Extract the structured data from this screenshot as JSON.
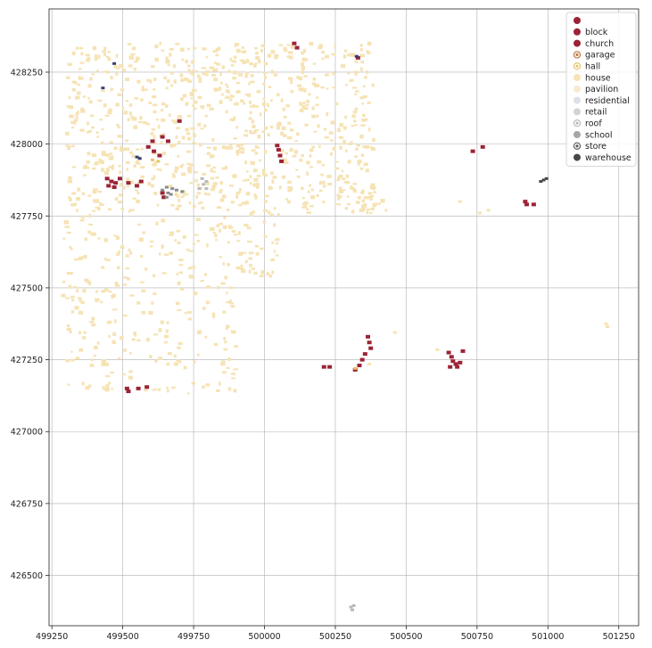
{
  "chart_data": {
    "type": "scatter",
    "title": "",
    "xlabel": "",
    "ylabel": "",
    "xlim": [
      499240,
      501320
    ],
    "ylim": [
      426325,
      428470
    ],
    "grid": true,
    "legend_placement": "top-right",
    "x_ticks": [
      499250,
      499500,
      499750,
      500000,
      500250,
      500500,
      500750,
      501000,
      501250
    ],
    "x_tick_labels": [
      "499250",
      "499500",
      "499750",
      "500000",
      "500250",
      "500500",
      "500750",
      "501000",
      "501250"
    ],
    "y_ticks": [
      426500,
      426750,
      427000,
      427250,
      427500,
      427750,
      428000,
      428250
    ],
    "y_tick_labels": [
      "426500",
      "426750",
      "427000",
      "427250",
      "427500",
      "427750",
      "428000",
      "428250"
    ],
    "legend": [
      {
        "label": "",
        "color": "#9b2335",
        "marker": "filled"
      },
      {
        "label": "block",
        "color": "#9b2335",
        "marker": "filled"
      },
      {
        "label": "church",
        "color": "#9b2335",
        "marker": "filled"
      },
      {
        "label": "garage",
        "color": "#c07840",
        "marker": "hatched"
      },
      {
        "label": "hall",
        "color": "#e7c46a",
        "marker": "hatched"
      },
      {
        "label": "house",
        "color": "#f6e3b4",
        "marker": "filled"
      },
      {
        "label": "pavilion",
        "color": "#f8ead0",
        "marker": "filled"
      },
      {
        "label": "residential",
        "color": "#dde0ea",
        "marker": "filled"
      },
      {
        "label": "retail",
        "color": "#d3d3d3",
        "marker": "filled"
      },
      {
        "label": "roof",
        "color": "#b9b9b9",
        "marker": "hatched"
      },
      {
        "label": "school",
        "color": "#a6a6a6",
        "marker": "filled"
      },
      {
        "label": "store",
        "color": "#5c5c5c",
        "marker": "hatched"
      },
      {
        "label": "warehouse",
        "color": "#474747",
        "marker": "filled"
      }
    ],
    "series": [
      {
        "name": "house",
        "color": "#f6e3b4",
        "regions": [
          {
            "x": [
              499300,
              500390
            ],
            "y": [
              427760,
              428350
            ],
            "n": 820
          },
          {
            "x": [
              499290,
              499900
            ],
            "y": [
              427130,
              427760
            ],
            "n": 260
          },
          {
            "x": [
              499900,
              500050
            ],
            "y": [
              427540,
              427760
            ],
            "n": 40
          },
          {
            "x": [
              500250,
              500430
            ],
            "y": [
              427760,
              427850
            ],
            "n": 25
          }
        ],
        "points": [
          [
            500760,
            427760
          ],
          [
            500790,
            427770
          ],
          [
            500690,
            427800
          ],
          [
            500460,
            427345
          ],
          [
            500610,
            427285
          ],
          [
            501210,
            427365
          ],
          [
            501205,
            427375
          ],
          [
            500370,
            427235
          ]
        ]
      },
      {
        "name": "block",
        "color": "#9b2335",
        "points": [
          [
            499445,
            427880
          ],
          [
            499460,
            427870
          ],
          [
            499475,
            427865
          ],
          [
            499450,
            427855
          ],
          [
            499470,
            427850
          ],
          [
            499490,
            427880
          ],
          [
            499520,
            427865
          ],
          [
            499550,
            427855
          ],
          [
            499565,
            427870
          ],
          [
            499640,
            427830
          ],
          [
            499645,
            427815
          ],
          [
            499590,
            427990
          ],
          [
            499605,
            428010
          ],
          [
            499640,
            428025
          ],
          [
            499660,
            428010
          ],
          [
            499700,
            428080
          ],
          [
            499630,
            427960
          ],
          [
            499610,
            427975
          ],
          [
            500050,
            427980
          ],
          [
            500055,
            427960
          ],
          [
            500060,
            427940
          ],
          [
            500045,
            427995
          ],
          [
            500105,
            428350
          ],
          [
            500115,
            428335
          ],
          [
            500330,
            428300
          ],
          [
            500365,
            427330
          ],
          [
            500370,
            427310
          ],
          [
            500375,
            427290
          ],
          [
            500355,
            427270
          ],
          [
            500345,
            427250
          ],
          [
            500335,
            427230
          ],
          [
            500320,
            427215
          ],
          [
            500230,
            427225
          ],
          [
            500210,
            427225
          ],
          [
            500650,
            427275
          ],
          [
            500660,
            427260
          ],
          [
            500665,
            427245
          ],
          [
            500675,
            427235
          ],
          [
            500680,
            427225
          ],
          [
            500655,
            427225
          ],
          [
            500690,
            427240
          ],
          [
            500700,
            427280
          ],
          [
            500735,
            427975
          ],
          [
            500770,
            427990
          ],
          [
            500920,
            427800
          ],
          [
            500925,
            427790
          ],
          [
            500950,
            427790
          ],
          [
            499515,
            427150
          ],
          [
            499520,
            427140
          ],
          [
            499555,
            427150
          ],
          [
            499585,
            427155
          ]
        ]
      },
      {
        "name": "hall",
        "color": "#e7c46a",
        "points": [
          [
            499605,
            427945
          ],
          [
            499625,
            427940
          ],
          [
            500320,
            427220
          ]
        ]
      },
      {
        "name": "residential",
        "color": "#3c3c6a",
        "points": [
          [
            499550,
            427955
          ],
          [
            499560,
            427950
          ],
          [
            499470,
            428280
          ],
          [
            499430,
            428195
          ],
          [
            500325,
            428305
          ]
        ]
      },
      {
        "name": "roof",
        "color": "#b9b9b9",
        "points": [
          [
            499780,
            427880
          ],
          [
            499785,
            427860
          ],
          [
            499770,
            427845
          ],
          [
            499795,
            427870
          ],
          [
            499795,
            427845
          ],
          [
            500310,
            426380
          ],
          [
            500305,
            426390
          ],
          [
            500315,
            426395
          ]
        ]
      },
      {
        "name": "school",
        "color": "#8a8a8a",
        "points": [
          [
            499640,
            427840
          ],
          [
            499660,
            427830
          ],
          [
            499675,
            427845
          ],
          [
            499690,
            427840
          ],
          [
            499655,
            427850
          ],
          [
            499710,
            427835
          ],
          [
            499655,
            427815
          ],
          [
            499670,
            427825
          ]
        ]
      },
      {
        "name": "warehouse",
        "color": "#474747",
        "points": [
          [
            500975,
            427870
          ],
          [
            500985,
            427875
          ],
          [
            500995,
            427880
          ]
        ]
      }
    ]
  }
}
